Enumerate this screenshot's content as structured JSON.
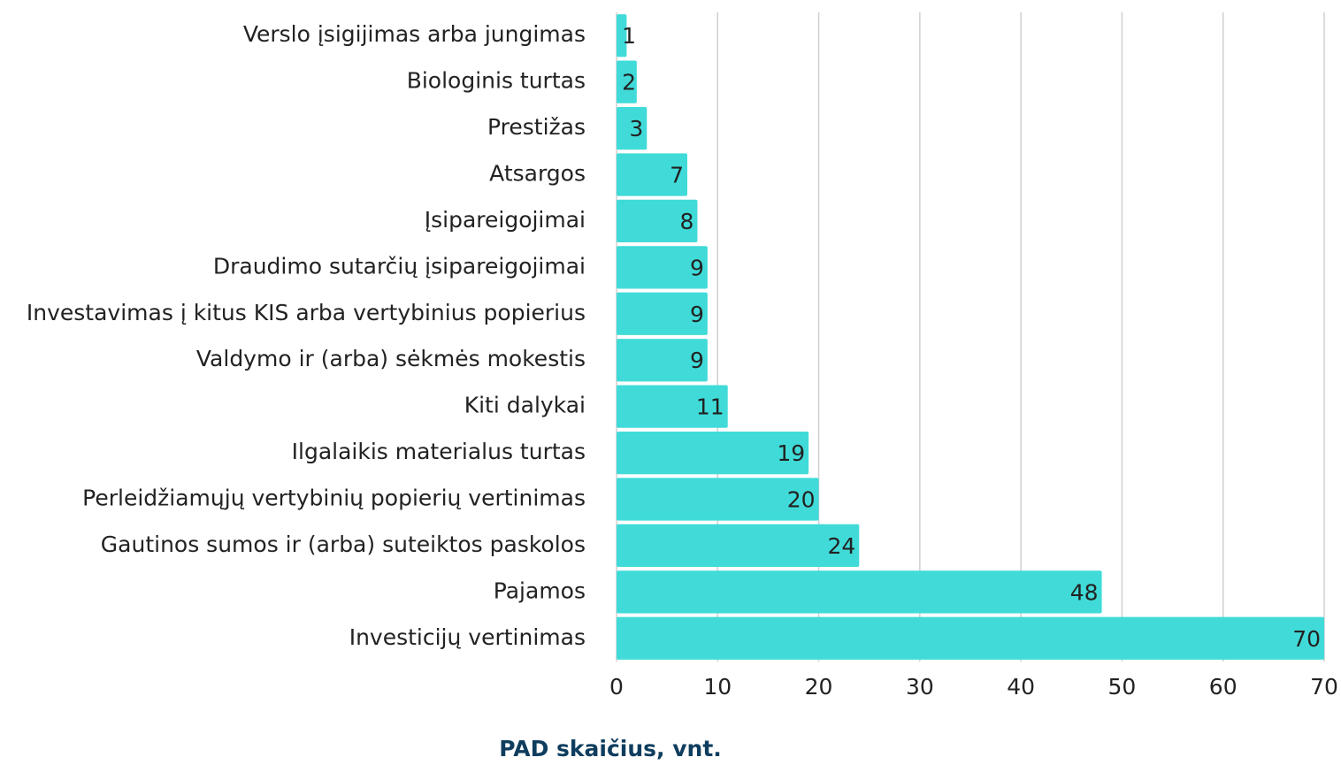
{
  "chart_data": {
    "type": "barh",
    "categories": [
      "Verslo įsigijimas arba jungimas",
      "Biologinis turtas",
      "Prestižas",
      "Atsargos",
      "Įsipareigojimai",
      "Draudimo sutarčių įsipareigojimai",
      "Investavimas į kitus KIS arba vertybinius popierius",
      "Valdymo ir (arba) sėkmės mokestis",
      "Kiti dalykai",
      "Ilgalaikis materialus turtas",
      "Perleidžiamųjų vertybinių popierių vertinimas",
      "Gautinos sumos ir (arba) suteiktos paskolos",
      "Pajamos",
      "Investicijų vertinimas"
    ],
    "values": [
      1,
      2,
      3,
      7,
      8,
      9,
      9,
      9,
      11,
      19,
      20,
      24,
      48,
      70
    ],
    "color": "#40dbd8",
    "xlim": [
      0,
      70
    ],
    "xticks": [
      0,
      10,
      20,
      30,
      40,
      50,
      60,
      70
    ],
    "grid": true,
    "xlabel": "PAD skaičius, vnt."
  }
}
